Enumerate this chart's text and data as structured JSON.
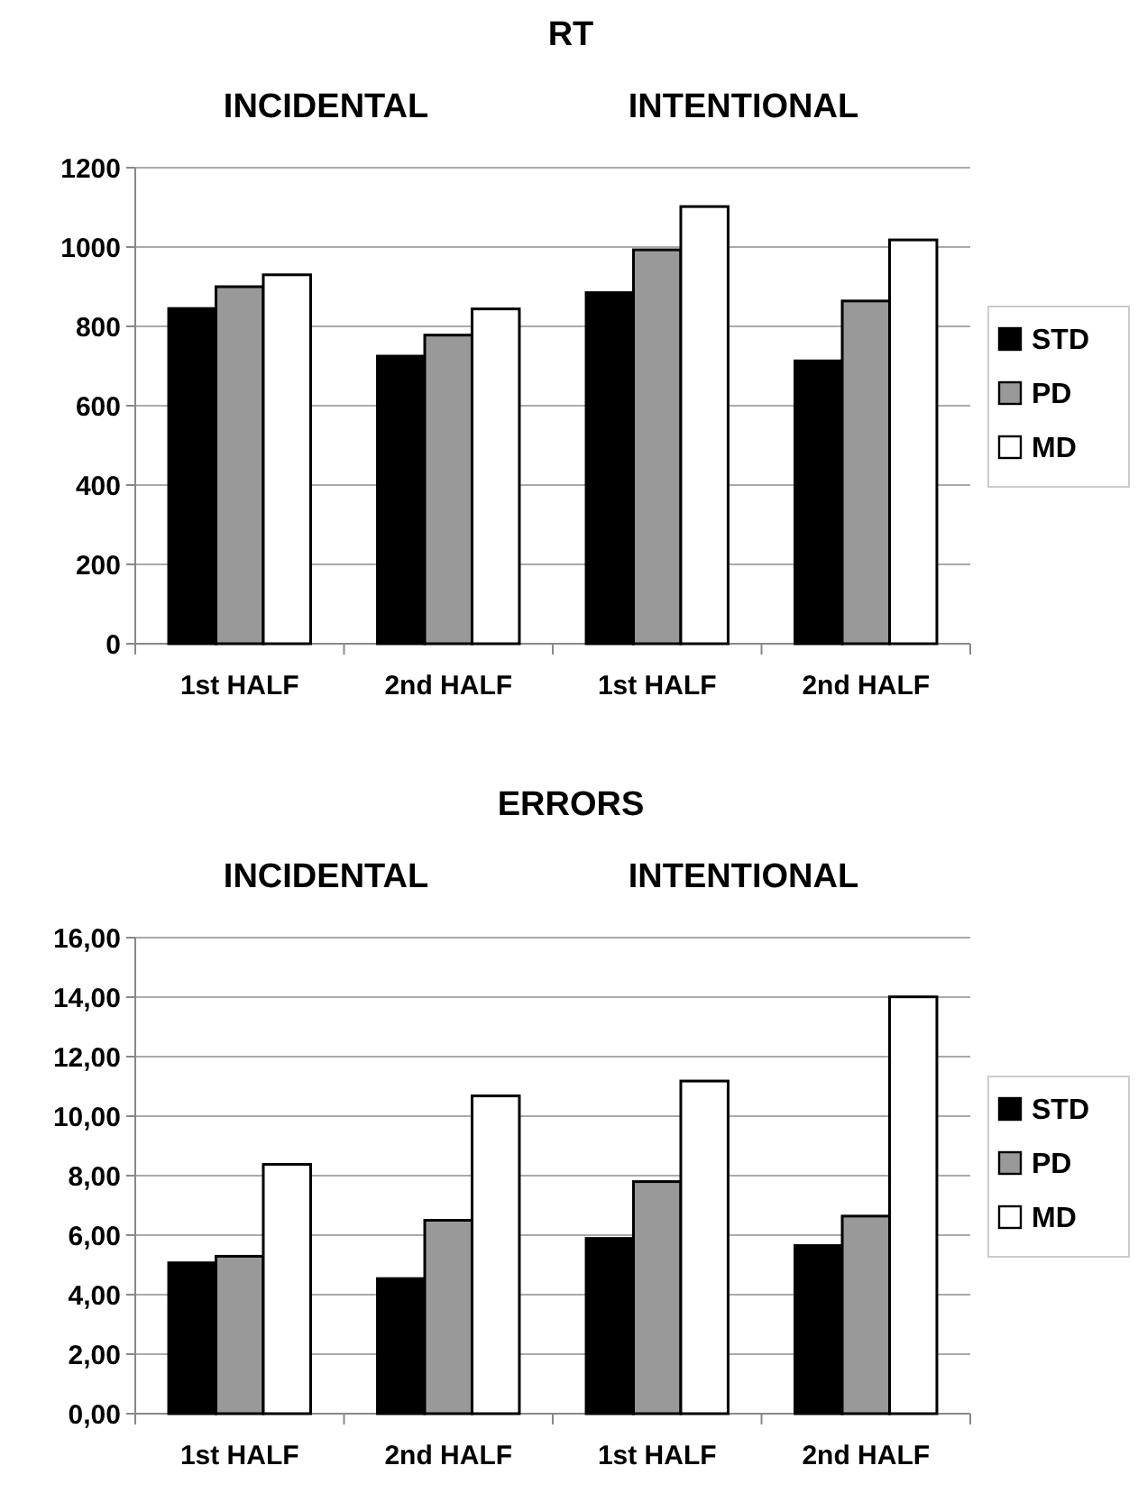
{
  "chart_data": [
    {
      "type": "bar",
      "title": "RT",
      "annotations": [
        "INCIDENTAL",
        "INTENTIONAL"
      ],
      "categories": [
        "1st HALF",
        "2nd HALF",
        "1st HALF",
        "2nd HALF"
      ],
      "series": [
        {
          "name": "STD",
          "color": "#000000",
          "values": [
            845,
            725,
            885,
            713
          ]
        },
        {
          "name": "PD",
          "color": "#999999",
          "values": [
            900,
            778,
            993,
            864
          ]
        },
        {
          "name": "MD",
          "color": "#ffffff",
          "values": [
            930,
            844,
            1102,
            1018
          ]
        }
      ],
      "ylim": [
        0,
        1200
      ],
      "yticks": [
        0,
        200,
        400,
        600,
        800,
        1000,
        1200
      ],
      "grid": "y",
      "legend": "right"
    },
    {
      "type": "bar",
      "title": "ERRORS",
      "annotations": [
        "INCIDENTAL",
        "INTENTIONAL"
      ],
      "categories": [
        "1st HALF",
        "2nd HALF",
        "1st HALF",
        "2nd HALF"
      ],
      "series": [
        {
          "name": "STD",
          "color": "#000000",
          "values": [
            5.07,
            4.54,
            5.89,
            5.65
          ]
        },
        {
          "name": "PD",
          "color": "#999999",
          "values": [
            5.29,
            6.5,
            7.8,
            6.64
          ]
        },
        {
          "name": "MD",
          "color": "#ffffff",
          "values": [
            8.38,
            10.68,
            11.18,
            14.01
          ]
        }
      ],
      "ylim": [
        0,
        16
      ],
      "yticks": [
        {
          "value": 0,
          "label": "0,00"
        },
        {
          "value": 2,
          "label": "2,00"
        },
        {
          "value": 4,
          "label": "4,00"
        },
        {
          "value": 6,
          "label": "6,00"
        },
        {
          "value": 8,
          "label": "8,00"
        },
        {
          "value": 10,
          "label": "10,00"
        },
        {
          "value": 12,
          "label": "12,00"
        },
        {
          "value": 14,
          "label": "14,00"
        },
        {
          "value": 16,
          "label": "16,00"
        }
      ],
      "grid": "y",
      "legend": "right"
    }
  ]
}
